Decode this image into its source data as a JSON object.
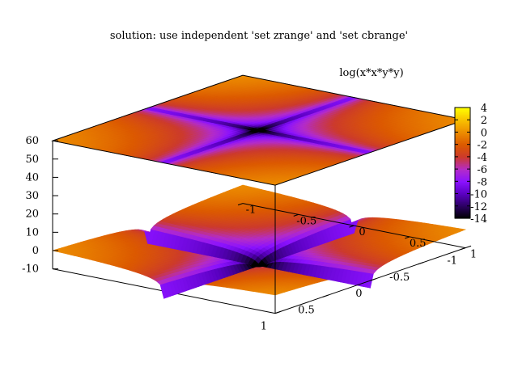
{
  "chart_data": {
    "type": "surface",
    "title": "solution: use independent 'set zrange' and 'set cbrange'",
    "surface_label": "log(x*x*y*y)",
    "function": "log(x*x*y*y)",
    "x": [
      -1,
      -0.9,
      -0.8,
      -0.7,
      -0.6,
      -0.5,
      -0.4,
      -0.3,
      -0.2,
      -0.1,
      0,
      0.1,
      0.2,
      0.3,
      0.4,
      0.5,
      0.6,
      0.7,
      0.8,
      0.9,
      1
    ],
    "y": [
      -1,
      -0.9,
      -0.8,
      -0.7,
      -0.6,
      -0.5,
      -0.4,
      -0.3,
      -0.2,
      -0.1,
      0,
      0.1,
      0.2,
      0.3,
      0.4,
      0.5,
      0.6,
      0.7,
      0.8,
      0.9,
      1
    ],
    "surface_floor": -14,
    "map_plane_z": 60,
    "xrange": [
      -1,
      1
    ],
    "yrange": [
      -1,
      1
    ],
    "zrange": [
      -10,
      60
    ],
    "cbrange": [
      -14,
      4
    ],
    "xticks": [
      "1",
      "0.5",
      "0",
      "-0.5",
      "-1"
    ],
    "yticks": [
      "-1",
      "-0.5",
      "0",
      "0.5",
      "1"
    ],
    "zticks": [
      "60",
      "50",
      "40",
      "30",
      "20",
      "10",
      "0",
      "-10"
    ],
    "cbticks": [
      "4",
      "2",
      "0",
      "-2",
      "-4",
      "-6",
      "-8",
      "-10",
      "-12",
      "-14"
    ],
    "colors": [
      "#000000",
      "#2a0060",
      "#5a00c0",
      "#8a12ff",
      "#b42cc8",
      "#cc3a2c",
      "#dc5a00",
      "#ec8c00",
      "#f8c000",
      "#ffff00"
    ]
  }
}
